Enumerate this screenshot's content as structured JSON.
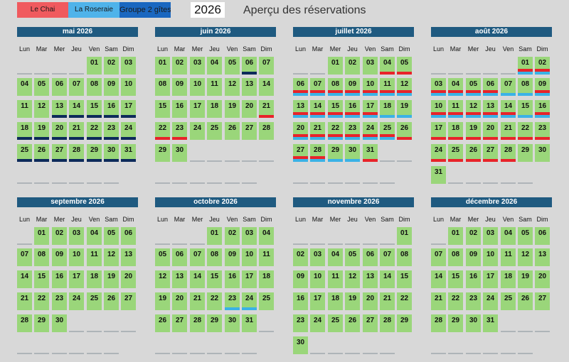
{
  "legend": [
    {
      "label": "Le Chai",
      "cls": "chai"
    },
    {
      "label": "La Roseraie",
      "cls": "roseraie"
    },
    {
      "label": "Groupe 2 gîtes",
      "cls": "groupe"
    }
  ],
  "year": "2026",
  "title": "Aperçu des réservations",
  "weekdays": [
    "Lun",
    "Mar",
    "Mer",
    "Jeu",
    "Ven",
    "Sam",
    "Dim"
  ],
  "colors": {
    "day_cell": "#9ad67a",
    "header": "#1f5a80",
    "le_chai": "#e8232a",
    "la_roseraie": "#3ab2e6",
    "groupe": "#1a67c0",
    "dark_marker": "#0d2a5a"
  },
  "months": [
    {
      "name": "mai 2026",
      "offset": 4,
      "days": 31,
      "marks": {
        "13": "N",
        "14": "N",
        "15": "N",
        "16": "N",
        "17": "N",
        "18": "N",
        "19": "N",
        "20": "N",
        "21": "N",
        "22": "N",
        "23": "N",
        "24": "N",
        "25": "N",
        "26": "N",
        "27": "N",
        "28": "N",
        "29": "N",
        "30": "N",
        "31": "N"
      }
    },
    {
      "name": "juin 2026",
      "offset": 0,
      "days": 30,
      "marks": {
        "6": "N",
        "21": "C",
        "22": "C",
        "23": "C"
      }
    },
    {
      "name": "juillet 2026",
      "offset": 2,
      "days": 31,
      "marks": {
        "4": "C",
        "5": "C",
        "6": "CR",
        "7": "CR",
        "8": "CR",
        "9": "CR",
        "10": "CR",
        "11": "CR",
        "12": "CR",
        "13": "CR",
        "14": "CR",
        "15": "CR",
        "16": "CR",
        "17": "CR",
        "18": "R",
        "19": "R",
        "20": "CR",
        "21": "CR",
        "22": "CR",
        "23": "CR",
        "24": "CR",
        "25": "CR",
        "26": "C",
        "27": "CR",
        "28": "CR",
        "29": "R",
        "30": "R",
        "31": "C"
      }
    },
    {
      "name": "août 2026",
      "offset": 5,
      "days": 31,
      "marks": {
        "1": "CR",
        "2": "CR",
        "3": "CR",
        "4": "CR",
        "5": "CR",
        "6": "CR",
        "7": "R",
        "8": "R",
        "9": "CR",
        "10": "CR",
        "11": "CR",
        "12": "CR",
        "13": "CR",
        "14": "CR",
        "15": "R",
        "16": "CR",
        "17": "C",
        "18": "C",
        "19": "C",
        "20": "C",
        "21": "C",
        "22": "C",
        "23": "C",
        "24": "C",
        "25": "C",
        "26": "C",
        "27": "C",
        "28": "C"
      }
    },
    {
      "name": "septembre 2026",
      "offset": 1,
      "days": 30,
      "marks": {}
    },
    {
      "name": "octobre 2026",
      "offset": 3,
      "days": 31,
      "marks": {
        "23": "R",
        "24": "R"
      }
    },
    {
      "name": "novembre 2026",
      "offset": 6,
      "days": 30,
      "marks": {}
    },
    {
      "name": "décembre 2026",
      "offset": 1,
      "days": 31,
      "marks": {}
    }
  ]
}
